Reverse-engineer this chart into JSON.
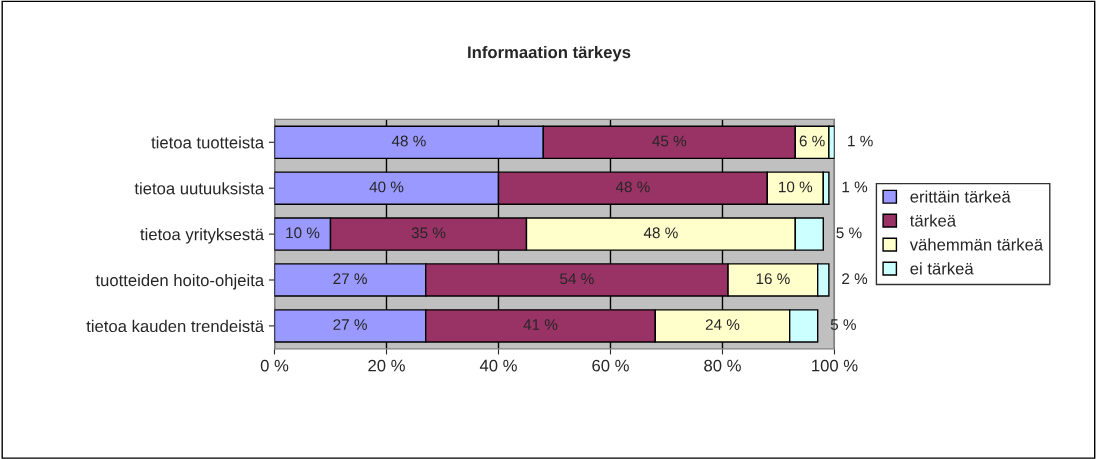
{
  "chart_data": {
    "type": "bar",
    "title": "Informaation tärkeys",
    "orientation": "horizontal",
    "stacked": true,
    "categories": [
      "tietoa tuotteista",
      "tietoa uutuuksista",
      "tietoa yrityksestä",
      "tuotteiden hoito-ohjeita",
      "tietoa kauden trendeistä"
    ],
    "series": [
      {
        "name": "erittäin tärkeä",
        "color": "#9999ff",
        "values": [
          48,
          40,
          10,
          27,
          27
        ],
        "value_labels": [
          "48 %",
          "40 %",
          "10 %",
          "27 %",
          "27 %"
        ]
      },
      {
        "name": "tärkeä",
        "color": "#993366",
        "values": [
          45,
          48,
          35,
          54,
          41
        ],
        "value_labels": [
          "45 %",
          "48 %",
          "35 %",
          "54 %",
          "41 %"
        ]
      },
      {
        "name": "vähemmän tärkeä",
        "color": "#ffffcc",
        "values": [
          6,
          10,
          48,
          16,
          24
        ],
        "value_labels": [
          "6 %",
          "10 %",
          "48 %",
          "16 %",
          "24 %"
        ]
      },
      {
        "name": "ei tärkeä",
        "color": "#ccffff",
        "values": [
          1,
          1,
          5,
          2,
          5
        ],
        "value_labels": [
          "1 %",
          "1 %",
          "5 %",
          "2 %",
          "5 %"
        ]
      }
    ],
    "xlim": [
      0,
      100
    ],
    "xticks": [
      {
        "value": 0,
        "label": "0 %"
      },
      {
        "value": 20,
        "label": "20 %"
      },
      {
        "value": 40,
        "label": "40 %"
      },
      {
        "value": 60,
        "label": "60 %"
      },
      {
        "value": 80,
        "label": "80 %"
      },
      {
        "value": 100,
        "label": "100 %"
      }
    ],
    "grid": "x",
    "legend": "right"
  }
}
